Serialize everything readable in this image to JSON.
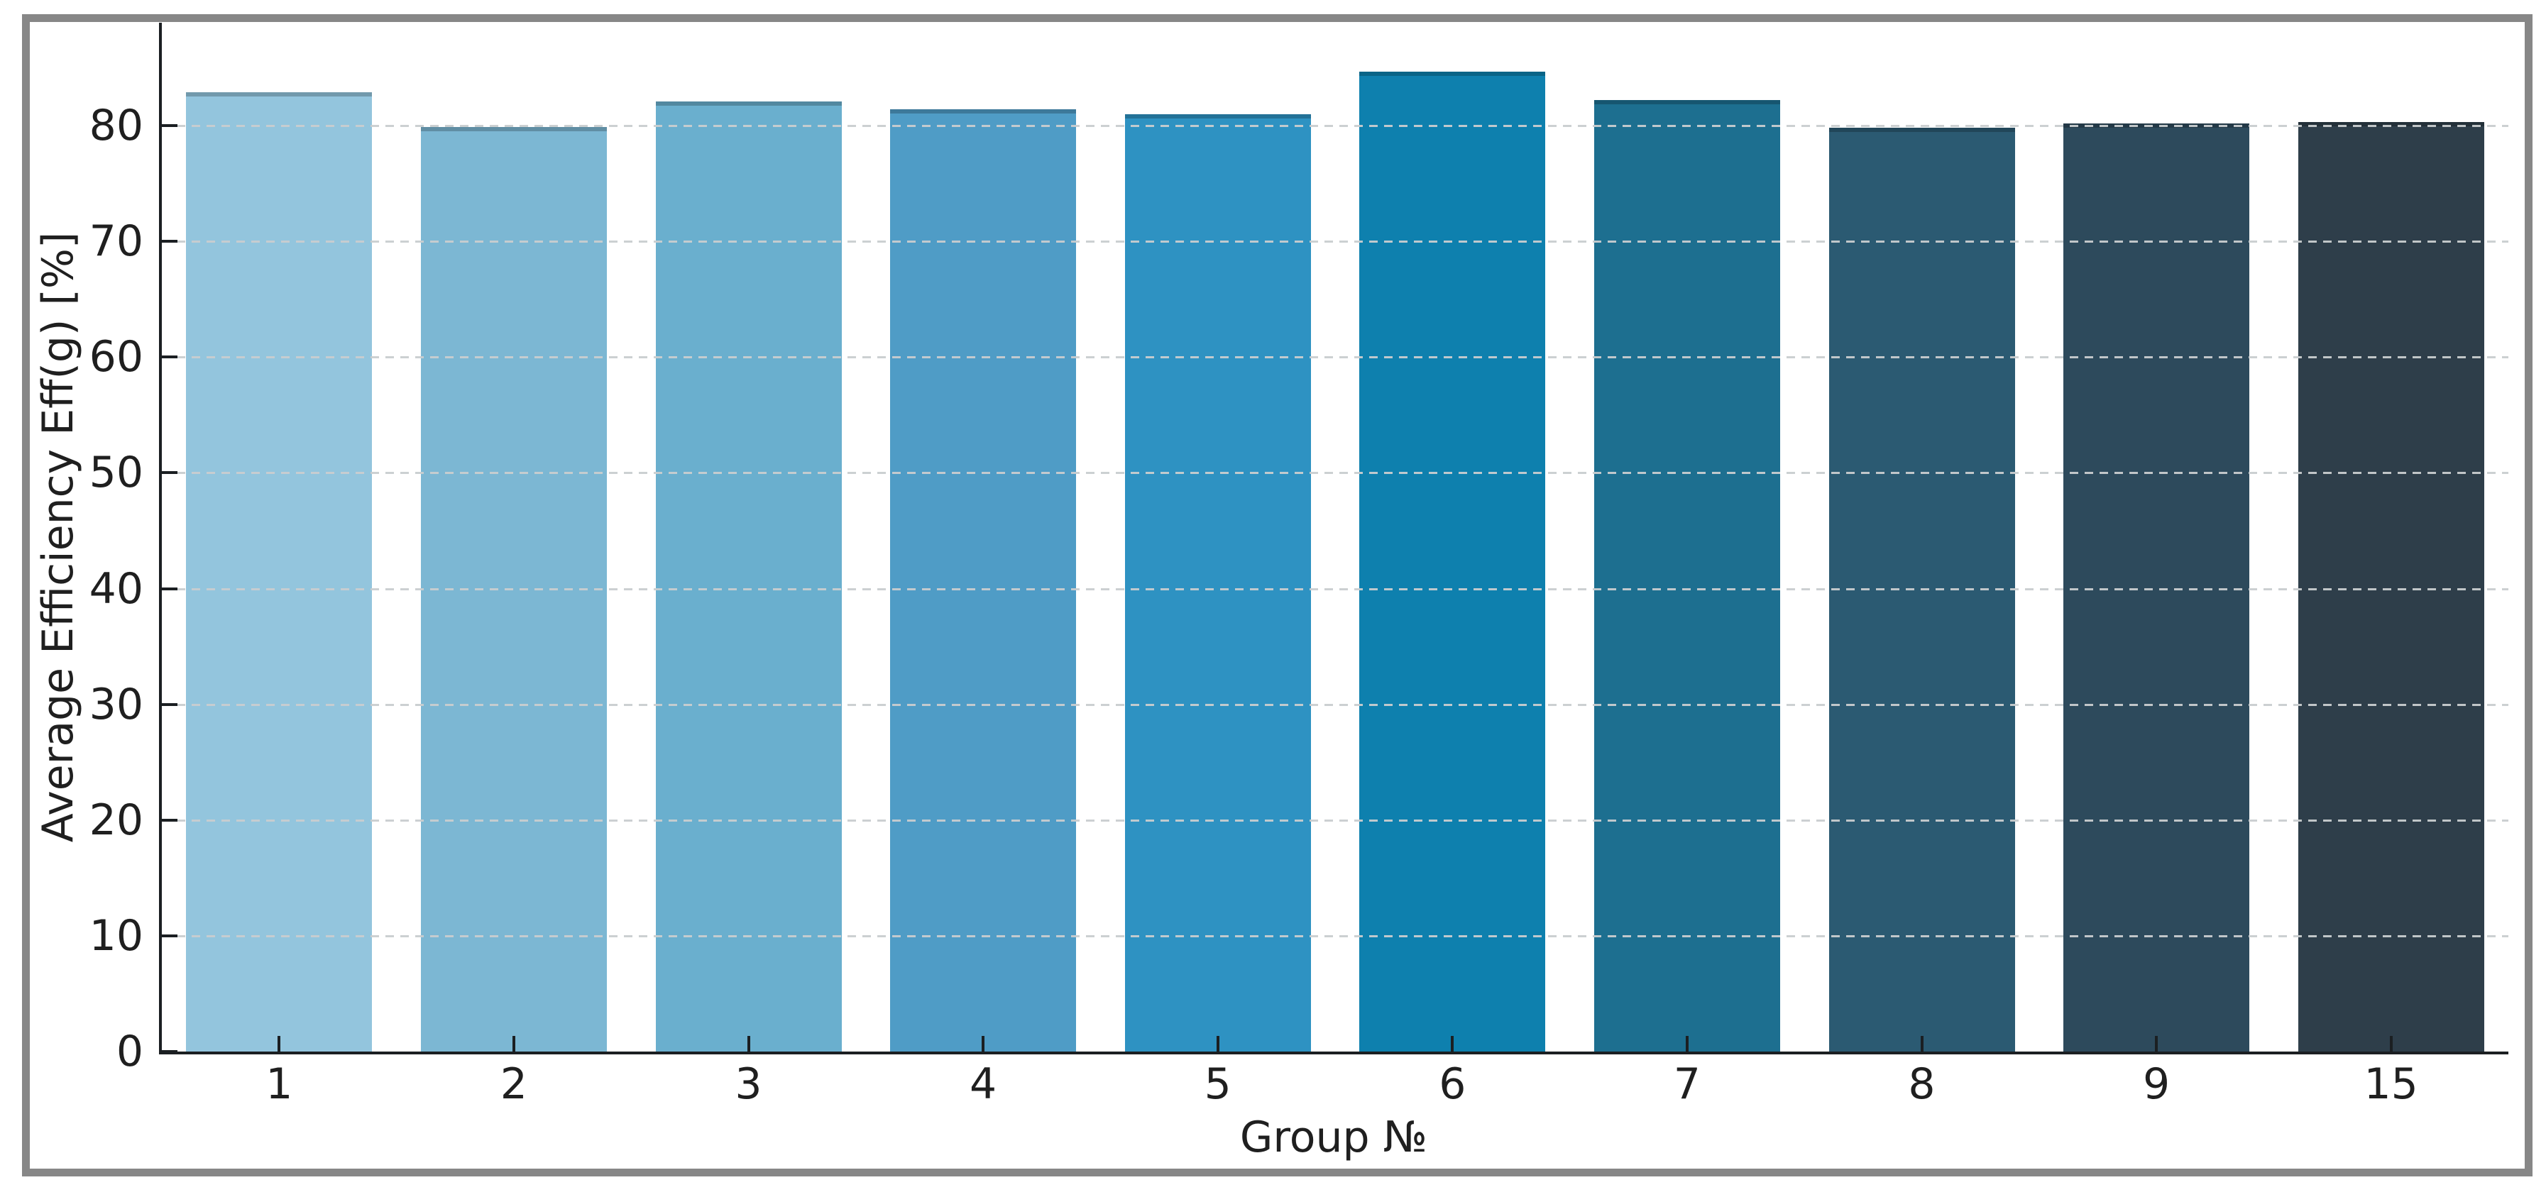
{
  "chart_data": {
    "type": "bar",
    "title": "",
    "xlabel": "Group №",
    "ylabel": "Average Efficiency Eff(g) [%]",
    "categories": [
      "1",
      "2",
      "3",
      "4",
      "5",
      "6",
      "7",
      "8",
      "9",
      "15"
    ],
    "values": [
      82.9,
      79.9,
      82.1,
      81.4,
      81.0,
      84.7,
      82.2,
      79.8,
      80.2,
      80.3
    ],
    "bar_colors": [
      "#93c5dd",
      "#7cb7d3",
      "#6aafce",
      "#4f9cc6",
      "#2e92c2",
      "#0e80ae",
      "#1d6f90",
      "#2b5a72",
      "#2d4a5c",
      "#2e3e4a"
    ],
    "yticks": [
      0,
      10,
      20,
      30,
      40,
      50,
      60,
      70,
      80
    ],
    "ylim": [
      0,
      88.9
    ],
    "grid": {
      "axis": "y",
      "style": "dashed",
      "color": "#c9cdcf",
      "on": true
    },
    "legend": {
      "visible": false
    },
    "styles": {
      "spine_color": "#1b1f22",
      "tick_label_color": "#1f1f1f",
      "figure_frame_color": "#878787",
      "background_color": "#ffffff",
      "bar_edge_shade": "rgba(0,0,0,0.22)"
    }
  }
}
